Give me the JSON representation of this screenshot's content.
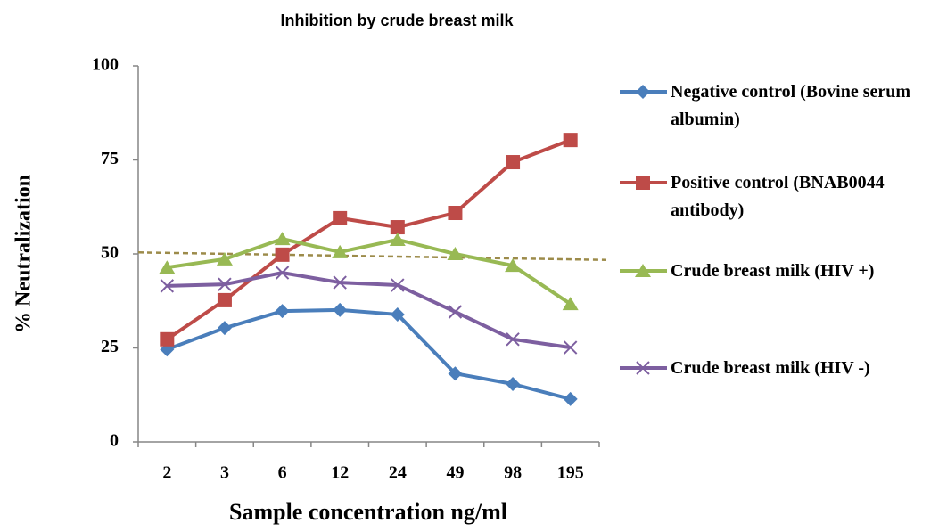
{
  "chart_data": {
    "type": "line",
    "title": "Inhibition by crude breast milk",
    "x_label": "Sample concentration ng/ml",
    "y_label": "% Neutralization",
    "categories": [
      "2",
      "3",
      "6",
      "12",
      "24",
      "49",
      "98",
      "195"
    ],
    "ylim": [
      0,
      100
    ],
    "yticks": [
      0,
      25,
      50,
      75,
      100
    ],
    "legend": "right",
    "series": [
      {
        "name": "Negative control (Bovine serum albumin)",
        "color": "#4a7ebb",
        "marker": "diamond",
        "values": [
          24.6,
          30.3,
          34.8,
          35.1,
          33.9,
          18.2,
          15.4,
          11.4
        ]
      },
      {
        "name": "Positive control (BNAB0044 antibody)",
        "color": "#be4b48",
        "marker": "square",
        "values": [
          27.3,
          37.7,
          49.8,
          59.5,
          57.1,
          60.9,
          74.4,
          80.3
        ]
      },
      {
        "name": "Crude breast milk (HIV +)",
        "color": "#98b954",
        "marker": "triangle",
        "values": [
          46.4,
          48.6,
          54.0,
          50.5,
          53.8,
          50.0,
          46.9,
          36.7
        ]
      },
      {
        "name": "Crude breast milk (HIV -)",
        "color": "#7d5fa0",
        "marker": "x",
        "values": [
          41.5,
          41.9,
          45.0,
          42.4,
          41.7,
          34.6,
          27.3,
          25.1
        ]
      }
    ],
    "trendline": {
      "values": [
        50.4,
        48.4
      ],
      "color": "#9c8b4a"
    }
  }
}
